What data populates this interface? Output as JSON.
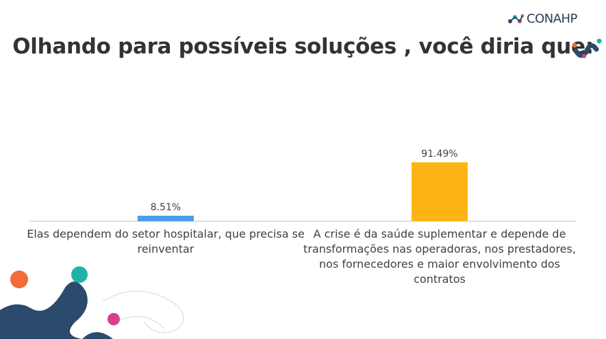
{
  "slide": {
    "title": "Olhando para possíveis soluções , você diria que:",
    "logo_text": "CONAHP"
  },
  "chart_data": {
    "type": "bar",
    "categories": [
      "Elas dependem do setor hospitalar, que precisa se reinventar",
      "A crise é da saúde suplementar e depende de transformações nas operadoras, nos prestadores, nos fornecedores e maior envolvimento dos contratos"
    ],
    "values": [
      8.51,
      91.49
    ],
    "data_labels": [
      "8.51%",
      "91.49%"
    ],
    "bar_colors": [
      "#4a9ee8",
      "#fdb515"
    ],
    "title": "",
    "xlabel": "",
    "ylabel": "",
    "ylim": [
      0,
      100
    ],
    "grid": false,
    "legend": "none"
  },
  "colors": {
    "title": "#333333",
    "axis": "#bfbfbf",
    "accent_orange": "#f26b3a",
    "accent_teal": "#1fb3a8",
    "accent_pink": "#d6408b",
    "accent_navy": "#2c4a6b"
  },
  "icons": [
    "conahp-logo-icon",
    "molecule-decoration-icon",
    "network-decoration-icon"
  ]
}
